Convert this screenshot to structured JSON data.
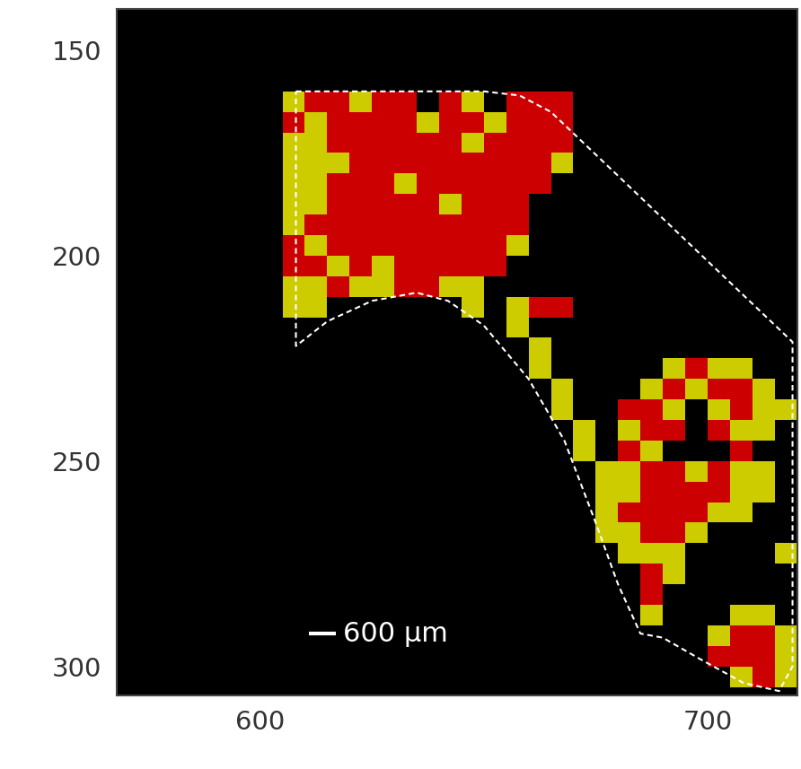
{
  "chart_data": {
    "type": "heatmap",
    "xlim": [
      568,
      720
    ],
    "ylim": [
      307,
      140
    ],
    "xticks": [
      600,
      700
    ],
    "yticks": [
      150,
      200,
      250,
      300
    ],
    "x_edges": [
      605,
      610,
      615,
      620,
      625,
      630,
      635,
      640,
      645,
      650,
      655,
      660,
      665,
      670,
      675,
      680,
      685,
      690,
      695,
      700,
      705,
      710,
      715,
      720
    ],
    "y_edges": [
      155,
      160,
      165,
      170,
      175,
      180,
      185,
      190,
      195,
      200,
      205,
      210,
      215,
      220,
      225,
      230,
      235,
      240,
      245,
      250,
      255,
      260,
      265,
      270,
      275,
      280,
      285,
      290,
      295,
      300,
      305
    ],
    "colors": [
      "#000000",
      "#cccc00",
      "#cc0000"
    ],
    "cells": [
      [
        0,
        0,
        0,
        0,
        0,
        0,
        0,
        0,
        0,
        0,
        0,
        0,
        0,
        0,
        0,
        0,
        0,
        0,
        0,
        0,
        0,
        0,
        0
      ],
      [
        1,
        2,
        2,
        1,
        2,
        2,
        0,
        2,
        1,
        0,
        2,
        2,
        2,
        0,
        0,
        0,
        0,
        0,
        0,
        0,
        0,
        0,
        0
      ],
      [
        2,
        1,
        2,
        2,
        2,
        2,
        1,
        2,
        2,
        1,
        2,
        2,
        2,
        0,
        0,
        0,
        0,
        0,
        0,
        0,
        0,
        0,
        0
      ],
      [
        1,
        1,
        2,
        2,
        2,
        2,
        2,
        2,
        1,
        2,
        2,
        2,
        2,
        0,
        0,
        0,
        0,
        0,
        0,
        0,
        0,
        0,
        0
      ],
      [
        1,
        1,
        1,
        2,
        2,
        2,
        2,
        2,
        2,
        2,
        2,
        2,
        1,
        0,
        0,
        0,
        0,
        0,
        0,
        0,
        0,
        0,
        0
      ],
      [
        1,
        1,
        2,
        2,
        2,
        1,
        2,
        2,
        2,
        2,
        2,
        2,
        0,
        0,
        0,
        0,
        0,
        0,
        0,
        0,
        0,
        0,
        0
      ],
      [
        1,
        1,
        2,
        2,
        2,
        2,
        2,
        1,
        2,
        2,
        2,
        0,
        0,
        0,
        0,
        0,
        0,
        0,
        0,
        0,
        0,
        0,
        0
      ],
      [
        1,
        2,
        2,
        2,
        2,
        2,
        2,
        2,
        2,
        2,
        2,
        0,
        0,
        0,
        0,
        0,
        0,
        0,
        0,
        0,
        0,
        0,
        0
      ],
      [
        2,
        1,
        2,
        2,
        2,
        2,
        2,
        2,
        2,
        2,
        1,
        0,
        0,
        0,
        0,
        0,
        0,
        0,
        0,
        0,
        0,
        0,
        0
      ],
      [
        2,
        2,
        1,
        2,
        1,
        2,
        2,
        2,
        2,
        2,
        0,
        0,
        0,
        0,
        0,
        0,
        0,
        0,
        0,
        0,
        0,
        0,
        0
      ],
      [
        1,
        1,
        2,
        1,
        1,
        2,
        2,
        1,
        1,
        0,
        0,
        0,
        0,
        0,
        0,
        0,
        0,
        0,
        0,
        0,
        0,
        0,
        0
      ],
      [
        1,
        1,
        0,
        0,
        0,
        0,
        0,
        0,
        1,
        0,
        1,
        2,
        2,
        0,
        0,
        0,
        0,
        0,
        0,
        0,
        0,
        0,
        0
      ],
      [
        0,
        0,
        0,
        0,
        0,
        0,
        0,
        0,
        0,
        0,
        1,
        0,
        0,
        0,
        0,
        0,
        0,
        0,
        0,
        0,
        0,
        0,
        0
      ],
      [
        0,
        0,
        0,
        0,
        0,
        0,
        0,
        0,
        0,
        0,
        0,
        1,
        0,
        0,
        0,
        0,
        0,
        0,
        0,
        0,
        0,
        0,
        0
      ],
      [
        0,
        0,
        0,
        0,
        0,
        0,
        0,
        0,
        0,
        0,
        0,
        1,
        0,
        0,
        0,
        0,
        0,
        1,
        2,
        1,
        1,
        0,
        0
      ],
      [
        0,
        0,
        0,
        0,
        0,
        0,
        0,
        0,
        0,
        0,
        0,
        0,
        1,
        0,
        0,
        0,
        1,
        2,
        1,
        2,
        2,
        1,
        0
      ],
      [
        0,
        0,
        0,
        0,
        0,
        0,
        0,
        0,
        0,
        0,
        0,
        0,
        1,
        0,
        0,
        2,
        2,
        1,
        0,
        1,
        2,
        1,
        1
      ],
      [
        0,
        0,
        0,
        0,
        0,
        0,
        0,
        0,
        0,
        0,
        0,
        0,
        0,
        1,
        0,
        1,
        2,
        2,
        0,
        2,
        1,
        1,
        0
      ],
      [
        0,
        0,
        0,
        0,
        0,
        0,
        0,
        0,
        0,
        0,
        0,
        0,
        0,
        1,
        0,
        2,
        1,
        0,
        0,
        0,
        2,
        0,
        0
      ],
      [
        0,
        0,
        0,
        0,
        0,
        0,
        0,
        0,
        0,
        0,
        0,
        0,
        0,
        0,
        1,
        1,
        2,
        2,
        1,
        2,
        1,
        1,
        0
      ],
      [
        0,
        0,
        0,
        0,
        0,
        0,
        0,
        0,
        0,
        0,
        0,
        0,
        0,
        0,
        1,
        1,
        2,
        2,
        2,
        2,
        1,
        1,
        0
      ],
      [
        0,
        0,
        0,
        0,
        0,
        0,
        0,
        0,
        0,
        0,
        0,
        0,
        0,
        0,
        1,
        2,
        2,
        2,
        2,
        1,
        1,
        0,
        0
      ],
      [
        0,
        0,
        0,
        0,
        0,
        0,
        0,
        0,
        0,
        0,
        0,
        0,
        0,
        0,
        1,
        1,
        2,
        2,
        1,
        0,
        0,
        0,
        0
      ],
      [
        0,
        0,
        0,
        0,
        0,
        0,
        0,
        0,
        0,
        0,
        0,
        0,
        0,
        0,
        0,
        1,
        1,
        1,
        0,
        0,
        0,
        0,
        1
      ],
      [
        0,
        0,
        0,
        0,
        0,
        0,
        0,
        0,
        0,
        0,
        0,
        0,
        0,
        0,
        0,
        0,
        2,
        1,
        0,
        0,
        0,
        0,
        0
      ],
      [
        0,
        0,
        0,
        0,
        0,
        0,
        0,
        0,
        0,
        0,
        0,
        0,
        0,
        0,
        0,
        0,
        2,
        0,
        0,
        0,
        0,
        0,
        0
      ],
      [
        0,
        0,
        0,
        0,
        0,
        0,
        0,
        0,
        0,
        0,
        0,
        0,
        0,
        0,
        0,
        0,
        1,
        0,
        0,
        0,
        1,
        1,
        0
      ],
      [
        0,
        0,
        0,
        0,
        0,
        0,
        0,
        0,
        0,
        0,
        0,
        0,
        0,
        0,
        0,
        0,
        0,
        0,
        0,
        1,
        2,
        2,
        1
      ],
      [
        0,
        0,
        0,
        0,
        0,
        0,
        0,
        0,
        0,
        0,
        0,
        0,
        0,
        0,
        0,
        0,
        0,
        0,
        0,
        2,
        2,
        2,
        1
      ],
      [
        0,
        0,
        0,
        0,
        0,
        0,
        0,
        0,
        0,
        0,
        0,
        0,
        0,
        0,
        0,
        0,
        0,
        0,
        0,
        0,
        1,
        2,
        1
      ]
    ],
    "outline": [
      [
        608,
        160
      ],
      [
        650,
        160
      ],
      [
        658,
        161
      ],
      [
        665,
        165
      ],
      [
        719,
        221
      ],
      [
        719,
        300
      ],
      [
        716,
        306
      ],
      [
        708,
        304
      ],
      [
        698,
        298
      ],
      [
        690,
        293
      ],
      [
        685,
        292
      ],
      [
        680,
        280
      ],
      [
        675,
        265
      ],
      [
        668,
        245
      ],
      [
        660,
        230
      ],
      [
        650,
        217
      ],
      [
        642,
        211
      ],
      [
        635,
        209
      ],
      [
        625,
        211
      ],
      [
        615,
        216
      ],
      [
        608,
        222
      ],
      [
        608,
        160
      ]
    ],
    "scale_bar": {
      "label": "600 μm",
      "x": [
        611,
        617
      ],
      "y": 292
    }
  }
}
